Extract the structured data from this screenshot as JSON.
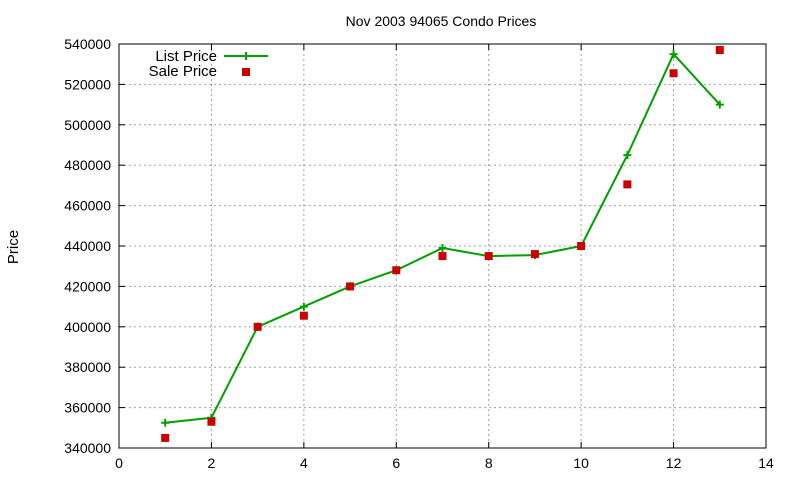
{
  "chart_data": {
    "type": "line",
    "title": "Nov 2003 94065 Condo Prices",
    "xlabel": "",
    "ylabel": "Price",
    "xlim": [
      0,
      14
    ],
    "ylim": [
      340000,
      540000
    ],
    "x_ticks": [
      0,
      2,
      4,
      6,
      8,
      10,
      12,
      14
    ],
    "y_ticks": [
      340000,
      360000,
      380000,
      400000,
      420000,
      440000,
      460000,
      480000,
      500000,
      520000,
      540000
    ],
    "x_tick_labels": [
      "0",
      "2",
      "4",
      "6",
      "8",
      "10",
      "12",
      "14"
    ],
    "y_tick_labels": [
      "340000",
      "360000",
      "380000",
      "400000",
      "420000",
      "440000",
      "460000",
      "480000",
      "500000",
      "520000",
      "540000"
    ],
    "grid": true,
    "legend_position": "top-left",
    "series": [
      {
        "name": "List Price",
        "style": "lines+points",
        "marker": "plus",
        "color": "#00a000",
        "x": [
          1,
          2,
          3,
          4,
          5,
          6,
          7,
          8,
          9,
          10,
          11,
          12,
          13
        ],
        "values": [
          352500,
          355000,
          400000,
          410000,
          420000,
          428000,
          439000,
          435000,
          435500,
          440000,
          485000,
          535000,
          510000
        ]
      },
      {
        "name": "Sale Price",
        "style": "points",
        "marker": "square",
        "color": "#cc0000",
        "x": [
          1,
          2,
          3,
          4,
          5,
          6,
          7,
          8,
          9,
          10,
          11,
          12,
          13
        ],
        "values": [
          345000,
          353000,
          400000,
          405500,
          420000,
          428000,
          435000,
          435000,
          436000,
          440000,
          470500,
          525500,
          537000
        ]
      }
    ]
  }
}
